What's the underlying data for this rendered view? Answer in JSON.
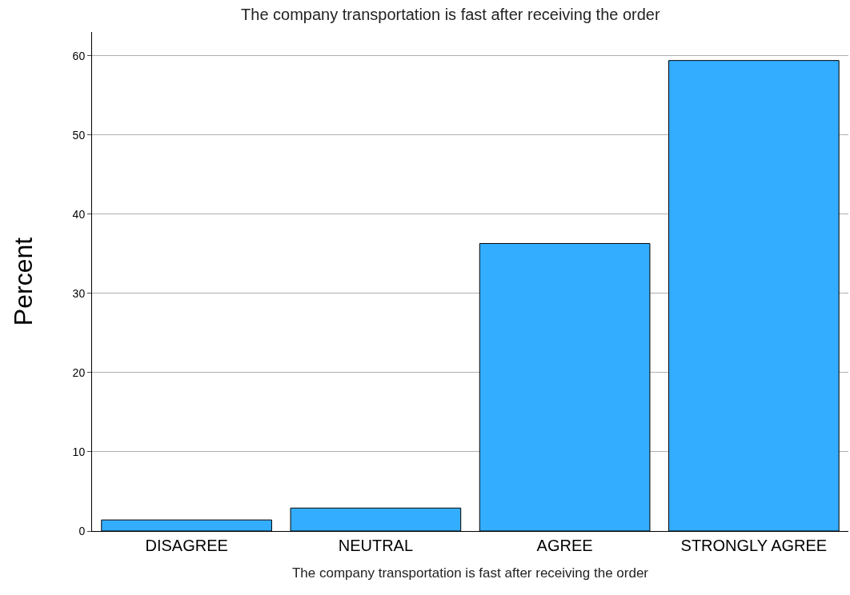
{
  "chart_data": {
    "type": "bar",
    "title": "The company transportation is fast after receiving the order",
    "xlabel": "The company transportation is fast after receiving the order",
    "ylabel": "Percent",
    "categories": [
      "DISAGREE",
      "NEUTRAL",
      "AGREE",
      "STRONGLY AGREE"
    ],
    "values": [
      1.4,
      2.9,
      36.3,
      59.4
    ],
    "color": "#33adff",
    "ylim": [
      0,
      63
    ],
    "yticks": [
      0,
      10,
      20,
      30,
      40,
      50,
      60
    ],
    "grid": "y",
    "legend": false
  }
}
